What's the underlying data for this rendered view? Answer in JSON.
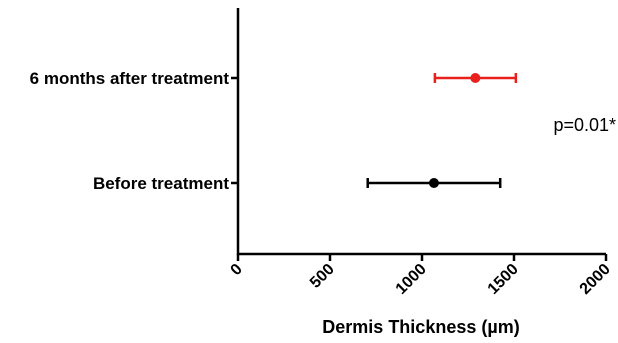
{
  "chart_data": {
    "type": "scatter",
    "orientation": "horizontal",
    "title": "",
    "xlabel": "Dermis Thickness (µm)",
    "ylabel": "",
    "xlim": [
      0,
      2000
    ],
    "x_ticks": [
      0,
      500,
      1000,
      1500,
      2000
    ],
    "x_tick_labels": [
      "0",
      "500",
      "1000",
      "1500",
      "2000"
    ],
    "grid": false,
    "legend": "none",
    "categories": [
      "6 months after treatment",
      "Before treatment"
    ],
    "series": [
      {
        "category": "6 months after treatment",
        "mean": 1290,
        "error_low": 1070,
        "error_high": 1510,
        "color": "#e8211d"
      },
      {
        "category": "Before treatment",
        "mean": 1065,
        "error_low": 705,
        "error_high": 1425,
        "color": "#000000"
      }
    ],
    "annotations": [
      {
        "text": "p=0.01*"
      }
    ]
  }
}
